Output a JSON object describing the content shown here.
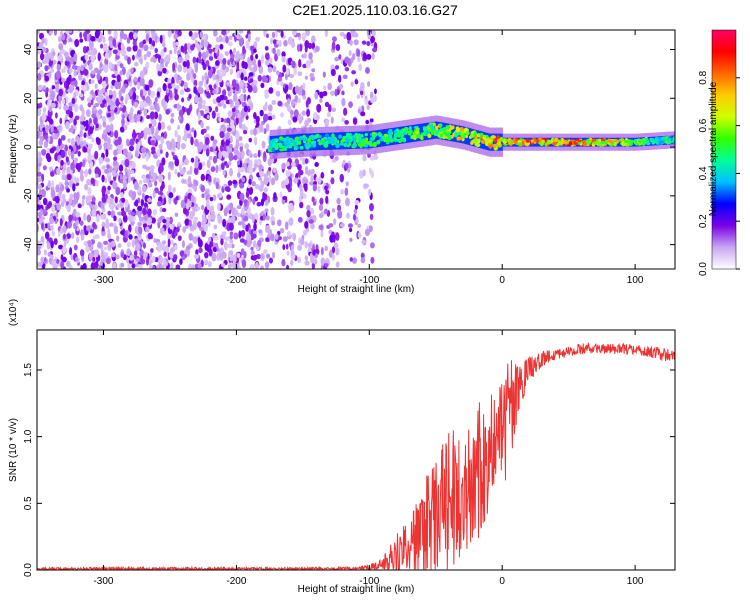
{
  "title": "C2E1.2025.110.03.16.G27",
  "chart_data": [
    {
      "type": "heatmap",
      "xlabel": "Height of straight line (km)",
      "ylabel": "Frequency (Hz)",
      "xlim": [
        -350,
        130
      ],
      "ylim": [
        -50,
        48
      ],
      "x_ticks": [
        -300,
        -200,
        -100,
        0,
        100
      ],
      "y_ticks": [
        -40,
        -20,
        0,
        20,
        40
      ],
      "colorbar": {
        "label": "Normalized spectral amplitude",
        "ticks": [
          0.0,
          0.2,
          0.4,
          0.6,
          0.8
        ],
        "range": [
          0,
          1
        ],
        "colors": [
          "#ffffff",
          "#c9a6f2",
          "#7a00e6",
          "#0000ff",
          "#00bfff",
          "#00ff99",
          "#33ff00",
          "#ccff00",
          "#ffcc00",
          "#ff6600",
          "#ff0000",
          "#ff0066"
        ]
      },
      "features": [
        {
          "kind": "noise_cloud",
          "x_range": [
            -350,
            -95
          ],
          "f_range": [
            -50,
            48
          ],
          "amplitude": [
            0.0,
            0.35
          ]
        },
        {
          "kind": "signal_band",
          "points": [
            {
              "x": -175,
              "f": 1,
              "amp": 0.5
            },
            {
              "x": -150,
              "f": 2,
              "amp": 0.55
            },
            {
              "x": -100,
              "f": 3,
              "amp": 0.55
            },
            {
              "x": -75,
              "f": 5,
              "amp": 0.6
            },
            {
              "x": -50,
              "f": 7,
              "amp": 0.7
            },
            {
              "x": -30,
              "f": 5,
              "amp": 0.75
            },
            {
              "x": -10,
              "f": 2,
              "amp": 0.8
            },
            {
              "x": 0,
              "f": 2,
              "amp": 0.85
            },
            {
              "x": 50,
              "f": 2,
              "amp": 0.95
            },
            {
              "x": 100,
              "f": 2,
              "amp": 0.7
            },
            {
              "x": 130,
              "f": 3,
              "amp": 0.5
            }
          ]
        }
      ]
    },
    {
      "type": "line",
      "xlabel": "Height of straight line (km)",
      "ylabel": "SNR (10 * v/v)",
      "y_multiplier": "(x10⁴)",
      "xlim": [
        -350,
        130
      ],
      "ylim": [
        0,
        1.8
      ],
      "x_ticks": [
        -300,
        -200,
        -100,
        0,
        100
      ],
      "y_ticks": [
        0.0,
        0.5,
        1.0,
        1.5
      ],
      "color": "#ee3333",
      "series": [
        {
          "x": [
            -350,
            -300,
            -250,
            -200,
            -150,
            -120,
            -100,
            -90,
            -80,
            -70,
            -60,
            -50,
            -40,
            -30,
            -20,
            -10,
            -5,
            0,
            5,
            10,
            15,
            20,
            30,
            40,
            50,
            60,
            70,
            80,
            90,
            100,
            110,
            120,
            130
          ],
          "y": [
            0.01,
            0.01,
            0.01,
            0.01,
            0.01,
            0.01,
            0.02,
            0.05,
            0.12,
            0.2,
            0.3,
            0.4,
            0.5,
            0.6,
            0.7,
            0.85,
            1.0,
            1.05,
            1.15,
            1.25,
            1.4,
            1.5,
            1.58,
            1.62,
            1.64,
            1.66,
            1.66,
            1.66,
            1.66,
            1.65,
            1.64,
            1.62,
            1.6
          ],
          "spread": [
            0.01,
            0.01,
            0.01,
            0.01,
            0.01,
            0.01,
            0.02,
            0.04,
            0.15,
            0.25,
            0.35,
            0.45,
            0.55,
            0.5,
            0.55,
            0.5,
            0.3,
            0.4,
            0.5,
            0.3,
            0.15,
            0.1,
            0.06,
            0.05,
            0.04,
            0.04,
            0.04,
            0.04,
            0.04,
            0.04,
            0.04,
            0.05,
            0.05
          ]
        }
      ]
    }
  ]
}
